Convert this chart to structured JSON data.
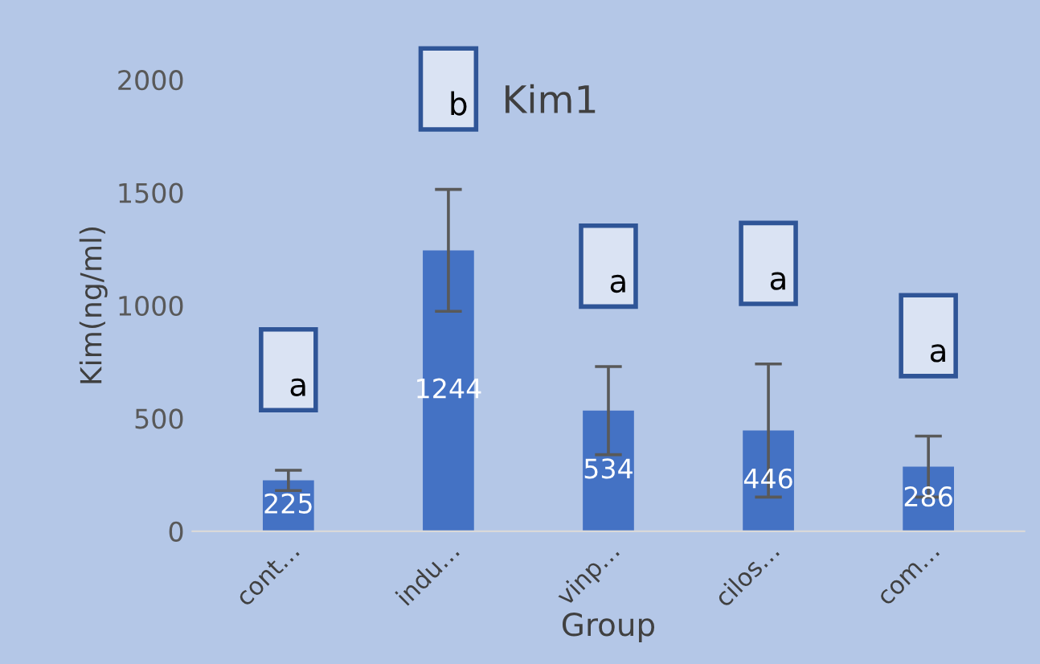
{
  "chart_data": {
    "type": "bar",
    "title": "Kim1",
    "xlabel": "Group",
    "ylabel": "Kim(ng/ml)",
    "categories": [
      "cont…",
      "indu…",
      "vinp…",
      "cilos…",
      "com…"
    ],
    "values": [
      225,
      1244,
      534,
      446,
      286
    ],
    "errors": [
      45,
      270,
      195,
      295,
      135
    ],
    "color": "#4472c4",
    "data_labels": true,
    "ylim": [
      0,
      2000
    ],
    "yticks": [
      0,
      500,
      1000,
      1500,
      2000
    ],
    "grid": false,
    "annotations": [
      "a",
      "b",
      "a",
      "a",
      "a"
    ]
  }
}
